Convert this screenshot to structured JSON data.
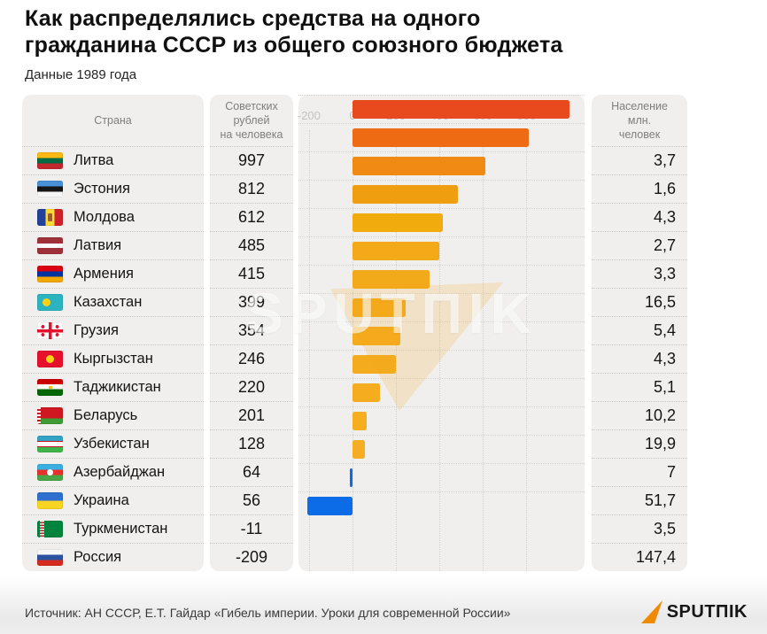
{
  "header": {
    "title_lines": [
      "Как распределялись средства на одного",
      "гражданина СССР из общего союзного бюджета"
    ],
    "subtitle": "Данные 1989 года"
  },
  "table": {
    "columns": {
      "country": "Страна",
      "rubles": "Советских\nрублей\nна человека",
      "population": "Население\nмлн.\nчеловек"
    },
    "axis": {
      "ticks": [
        -200,
        0,
        200,
        400,
        600,
        800
      ]
    },
    "rows": [
      {
        "country": "Литва",
        "flag": "lithuania",
        "rubles": "997",
        "value": 997,
        "population": "3,7",
        "bar_color": "#e84a1e"
      },
      {
        "country": "Эстония",
        "flag": "estonia",
        "rubles": "812",
        "value": 812,
        "population": "1,6",
        "bar_color": "#ee6b14"
      },
      {
        "country": "Молдова",
        "flag": "moldova",
        "rubles": "612",
        "value": 612,
        "population": "4,3",
        "bar_color": "#f18a12"
      },
      {
        "country": "Латвия",
        "flag": "latvia",
        "rubles": "485",
        "value": 485,
        "population": "2,7",
        "bar_color": "#ef9e0f"
      },
      {
        "country": "Армения",
        "flag": "armenia",
        "rubles": "415",
        "value": 415,
        "population": "3,3",
        "bar_color": "#f1ab0d"
      },
      {
        "country": "Казахстан",
        "flag": "kazakhstan",
        "rubles": "399",
        "value": 399,
        "population": "16,5",
        "bar_color": "#f3a918"
      },
      {
        "country": "Грузия",
        "flag": "georgia",
        "rubles": "354",
        "value": 354,
        "population": "5,4",
        "bar_color": "#f3aa1a"
      },
      {
        "country": "Кыргызстан",
        "flag": "kyrgyzstan",
        "rubles": "246",
        "value": 246,
        "population": "4,3",
        "bar_color": "#f4ab1c"
      },
      {
        "country": "Таджикистан",
        "flag": "tajikistan",
        "rubles": "220",
        "value": 220,
        "population": "5,1",
        "bar_color": "#f4ac1d"
      },
      {
        "country": "Беларусь",
        "flag": "belarus",
        "rubles": "201",
        "value": 201,
        "population": "10,2",
        "bar_color": "#f4ac1e"
      },
      {
        "country": "Узбекистан",
        "flag": "uzbekistan",
        "rubles": "128",
        "value": 128,
        "population": "19,9",
        "bar_color": "#f5ad1f"
      },
      {
        "country": "Азербайджан",
        "flag": "azerbaijan",
        "rubles": "64",
        "value": 64,
        "population": "7",
        "bar_color": "#f5ae20"
      },
      {
        "country": "Украина",
        "flag": "ukraine",
        "rubles": "56",
        "value": 56,
        "population": "51,7",
        "bar_color": "#f5ae21"
      },
      {
        "country": "Туркменистан",
        "flag": "turkmenistan",
        "rubles": "-11",
        "value": -11,
        "population": "3,5",
        "bar_color": "#0c6ce8"
      },
      {
        "country": "Россия",
        "flag": "russia",
        "rubles": "-209",
        "value": -209,
        "population": "147,4",
        "bar_color": "#0c6ce8"
      }
    ]
  },
  "chart_data": {
    "type": "bar",
    "orientation": "horizontal",
    "title": "Как распределялись средства на одного гражданина СССР из общего союзного бюджета",
    "subtitle": "Данные 1989 года",
    "categories": [
      "Литва",
      "Эстония",
      "Молдова",
      "Латвия",
      "Армения",
      "Казахстан",
      "Грузия",
      "Кыргызстан",
      "Таджикистан",
      "Беларусь",
      "Узбекистан",
      "Азербайджан",
      "Украина",
      "Туркменистан",
      "Россия"
    ],
    "series": [
      {
        "name": "Советских рублей на человека",
        "values": [
          997,
          812,
          612,
          485,
          415,
          399,
          354,
          246,
          220,
          201,
          128,
          64,
          56,
          -11,
          -209
        ]
      },
      {
        "name": "Население млн. человек",
        "values": [
          3.7,
          1.6,
          4.3,
          2.7,
          3.3,
          16.5,
          5.4,
          4.3,
          5.1,
          10.2,
          19.9,
          7,
          51.7,
          3.5,
          147.4
        ]
      }
    ],
    "x_ticks": [
      -200,
      0,
      200,
      400,
      600,
      800
    ],
    "xlim": [
      -260,
      1020
    ],
    "grid": "dotted vertical",
    "positive_color_range": [
      "#e84a1e",
      "#f5ae21"
    ],
    "negative_color": "#0c6ce8",
    "source": "Источник: АН СССР, Е.Т. Гайдар «Гибель империи. Уроки для современной России»"
  },
  "watermark": {
    "text": "SPUTΠIK"
  },
  "footer": {
    "source": "Источник: АН СССР, Е.Т. Гайдар «Гибель империи. Уроки для современной России»",
    "logo_text": "SPUTΠIK",
    "logo_color": "#f08a00"
  }
}
